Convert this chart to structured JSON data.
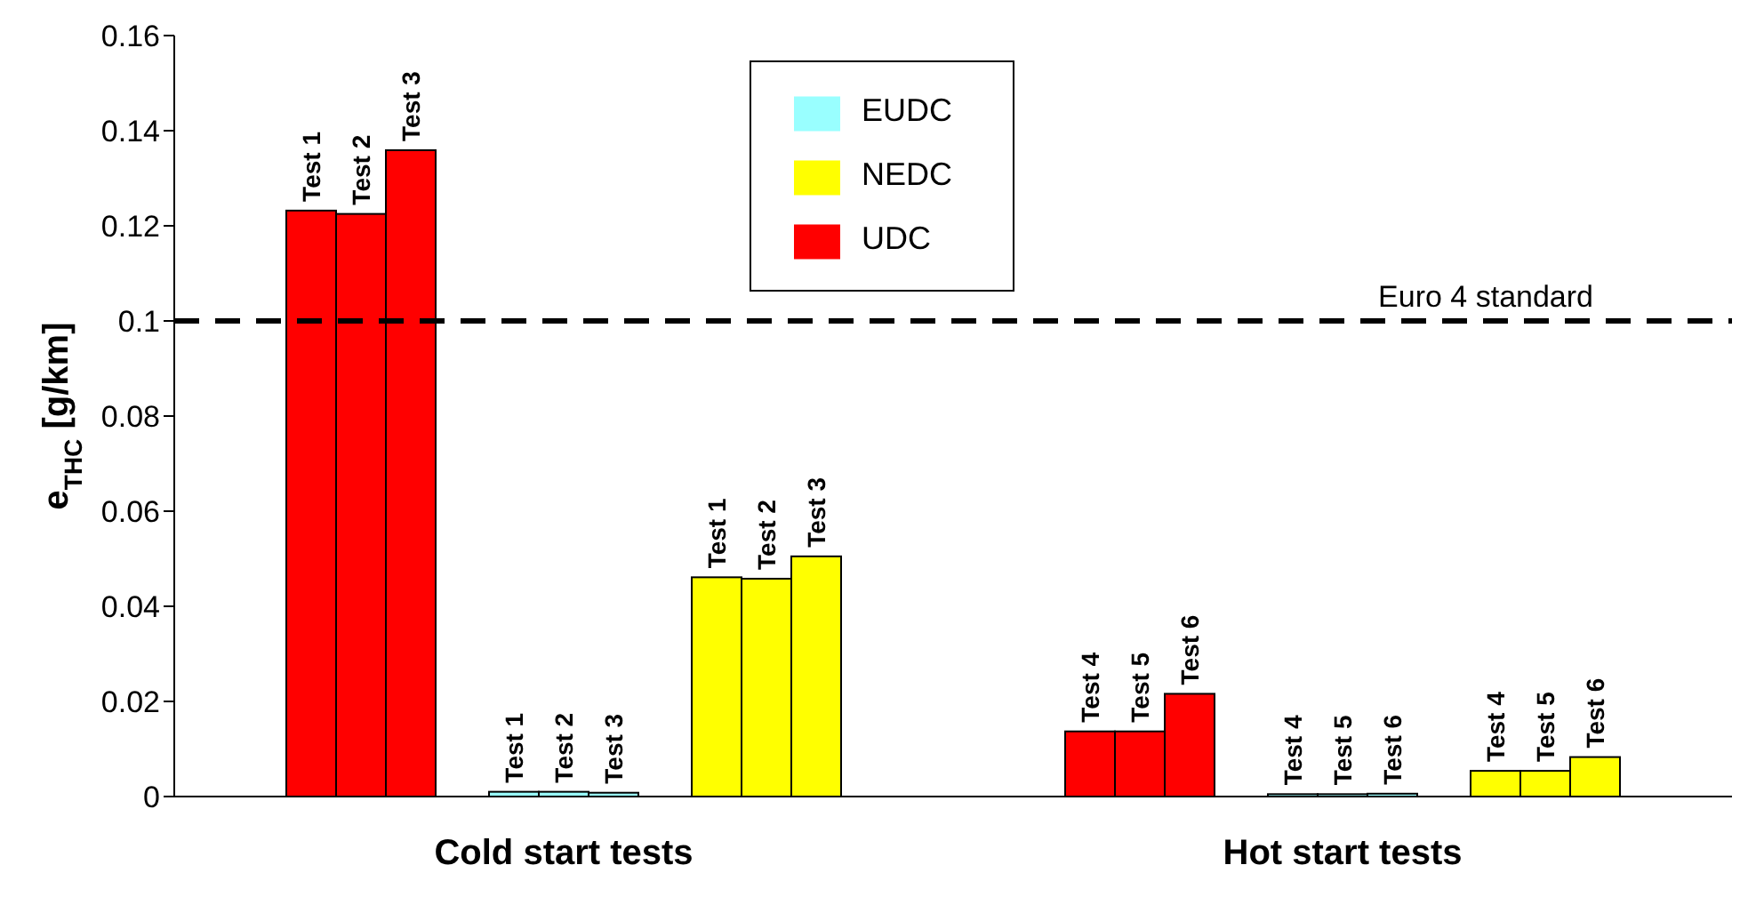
{
  "chart_data": {
    "type": "bar",
    "ylabel": "e$_{THC}$  [g/km]",
    "categories": [
      "Cold start tests",
      "Hot start tests"
    ],
    "series": [
      {
        "name": "UDC",
        "color": "#ff0000",
        "values": [
          0.1232,
          0.0137
        ],
        "value_labels": [
          "Test 1",
          "Test 4"
        ]
      },
      {
        "color": "#ff0000",
        "values": [
          0.1225,
          0.0137
        ],
        "value_labels": [
          "Test 2",
          "Test 5"
        ]
      },
      {
        "color": "#ff0000",
        "values": [
          0.1359,
          0.0216
        ],
        "value_labels": [
          "Test 3",
          "Test 6"
        ]
      },
      {
        "name": "EUDC",
        "color": "#99ffff",
        "values": [
          0.001,
          0.0005
        ],
        "value_labels": [
          "Test 1",
          "Test 4"
        ]
      },
      {
        "color": "#99ffff",
        "values": [
          0.001,
          0.0005
        ],
        "value_labels": [
          "Test 2",
          "Test 5"
        ]
      },
      {
        "color": "#99ffff",
        "values": [
          0.0008,
          0.0006
        ],
        "value_labels": [
          "Test 3",
          "Test 6"
        ]
      },
      {
        "name": "NEDC",
        "color": "#ffff00",
        "values": [
          0.0461,
          0.0054
        ],
        "value_labels": [
          "Test 1",
          "Test 4"
        ]
      },
      {
        "color": "#ffff00",
        "values": [
          0.0458,
          0.0054
        ],
        "value_labels": [
          "Test 2",
          "Test 5"
        ]
      },
      {
        "color": "#ffff00",
        "values": [
          0.0505,
          0.0083
        ],
        "value_labels": [
          "Test 3",
          "Test 6"
        ]
      }
    ],
    "ylim": [
      0,
      0.16
    ],
    "yticks": [
      0,
      0.02,
      0.04,
      0.06,
      0.08,
      0.1,
      0.12,
      0.14,
      0.16
    ],
    "ref_lines": [
      {
        "axis": "y",
        "value": 0.1,
        "label": "Euro 4 standard",
        "line_style": "dashed",
        "color": "#000000"
      }
    ],
    "grid": false,
    "legend": "top"
  }
}
